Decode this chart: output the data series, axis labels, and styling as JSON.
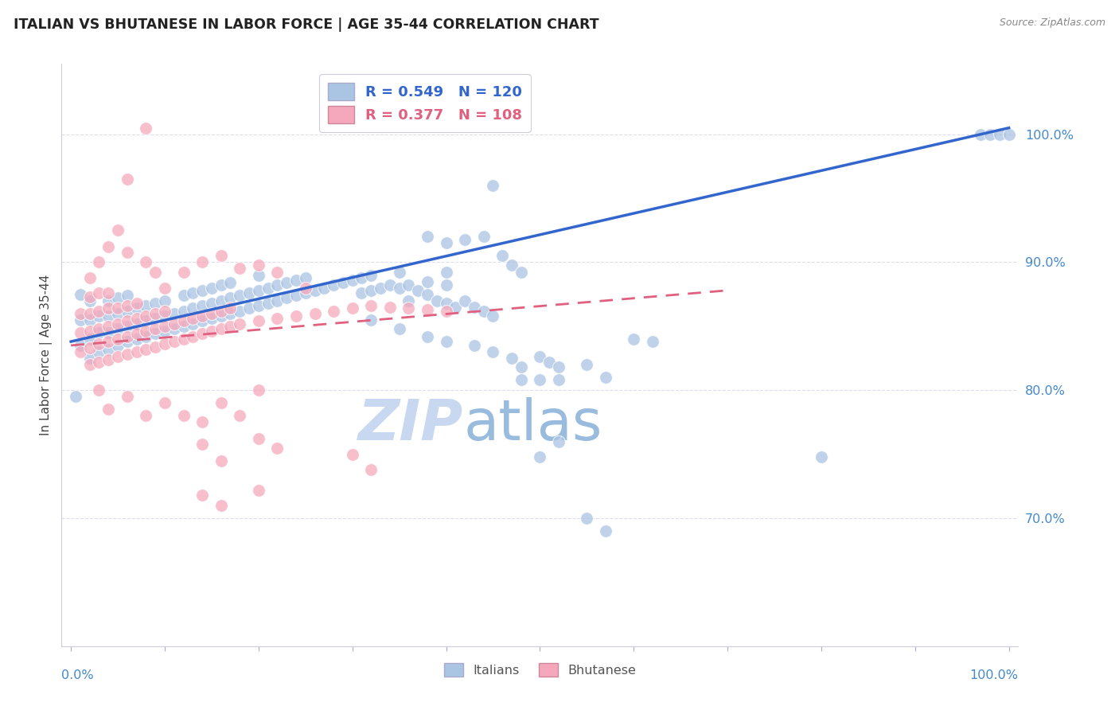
{
  "title": "ITALIAN VS BHUTANESE IN LABOR FORCE | AGE 35-44 CORRELATION CHART",
  "source_text": "Source: ZipAtlas.com",
  "ylabel": "In Labor Force | Age 35-44",
  "ytick_labels": [
    "70.0%",
    "80.0%",
    "90.0%",
    "100.0%"
  ],
  "ytick_values": [
    0.7,
    0.8,
    0.9,
    1.0
  ],
  "xlim": [
    -0.01,
    1.01
  ],
  "ylim": [
    0.6,
    1.055
  ],
  "italian_color": "#aac4e4",
  "bhutanese_color": "#f5a8bb",
  "italian_line_color": "#3366cc",
  "bhutanese_line_color": "#e06080",
  "title_color": "#222222",
  "axis_label_color": "#4488cc",
  "watermark_zip_color": "#c8d8f0",
  "watermark_atlas_color": "#99bbdd",
  "background_color": "#ffffff",
  "grid_color": "#ddddee",
  "italian_trendline": [
    0.0,
    0.838,
    1.0,
    1.005
  ],
  "bhutanese_trendline": [
    0.0,
    0.835,
    0.7,
    0.878
  ],
  "italian_scatter": [
    [
      0.005,
      0.795
    ],
    [
      0.01,
      0.835
    ],
    [
      0.01,
      0.855
    ],
    [
      0.01,
      0.875
    ],
    [
      0.02,
      0.825
    ],
    [
      0.02,
      0.84
    ],
    [
      0.02,
      0.855
    ],
    [
      0.02,
      0.87
    ],
    [
      0.03,
      0.83
    ],
    [
      0.03,
      0.845
    ],
    [
      0.03,
      0.858
    ],
    [
      0.04,
      0.832
    ],
    [
      0.04,
      0.845
    ],
    [
      0.04,
      0.858
    ],
    [
      0.04,
      0.87
    ],
    [
      0.05,
      0.835
    ],
    [
      0.05,
      0.848
    ],
    [
      0.05,
      0.86
    ],
    [
      0.05,
      0.872
    ],
    [
      0.06,
      0.838
    ],
    [
      0.06,
      0.85
    ],
    [
      0.06,
      0.862
    ],
    [
      0.06,
      0.874
    ],
    [
      0.07,
      0.84
    ],
    [
      0.07,
      0.852
    ],
    [
      0.07,
      0.864
    ],
    [
      0.08,
      0.842
    ],
    [
      0.08,
      0.854
    ],
    [
      0.08,
      0.866
    ],
    [
      0.09,
      0.844
    ],
    [
      0.09,
      0.856
    ],
    [
      0.09,
      0.868
    ],
    [
      0.1,
      0.846
    ],
    [
      0.1,
      0.858
    ],
    [
      0.1,
      0.87
    ],
    [
      0.11,
      0.848
    ],
    [
      0.11,
      0.86
    ],
    [
      0.12,
      0.85
    ],
    [
      0.12,
      0.862
    ],
    [
      0.12,
      0.874
    ],
    [
      0.13,
      0.852
    ],
    [
      0.13,
      0.864
    ],
    [
      0.13,
      0.876
    ],
    [
      0.14,
      0.854
    ],
    [
      0.14,
      0.866
    ],
    [
      0.14,
      0.878
    ],
    [
      0.15,
      0.856
    ],
    [
      0.15,
      0.868
    ],
    [
      0.15,
      0.88
    ],
    [
      0.16,
      0.858
    ],
    [
      0.16,
      0.87
    ],
    [
      0.16,
      0.882
    ],
    [
      0.17,
      0.86
    ],
    [
      0.17,
      0.872
    ],
    [
      0.17,
      0.884
    ],
    [
      0.18,
      0.862
    ],
    [
      0.18,
      0.874
    ],
    [
      0.19,
      0.864
    ],
    [
      0.19,
      0.876
    ],
    [
      0.2,
      0.866
    ],
    [
      0.2,
      0.878
    ],
    [
      0.2,
      0.89
    ],
    [
      0.21,
      0.868
    ],
    [
      0.21,
      0.88
    ],
    [
      0.22,
      0.87
    ],
    [
      0.22,
      0.882
    ],
    [
      0.23,
      0.872
    ],
    [
      0.23,
      0.884
    ],
    [
      0.24,
      0.874
    ],
    [
      0.24,
      0.886
    ],
    [
      0.25,
      0.876
    ],
    [
      0.25,
      0.888
    ],
    [
      0.26,
      0.878
    ],
    [
      0.27,
      0.88
    ],
    [
      0.28,
      0.882
    ],
    [
      0.29,
      0.884
    ],
    [
      0.3,
      0.886
    ],
    [
      0.31,
      0.876
    ],
    [
      0.31,
      0.888
    ],
    [
      0.32,
      0.878
    ],
    [
      0.32,
      0.89
    ],
    [
      0.33,
      0.88
    ],
    [
      0.34,
      0.882
    ],
    [
      0.35,
      0.88
    ],
    [
      0.35,
      0.892
    ],
    [
      0.36,
      0.882
    ],
    [
      0.36,
      0.87
    ],
    [
      0.37,
      0.878
    ],
    [
      0.38,
      0.875
    ],
    [
      0.38,
      0.885
    ],
    [
      0.39,
      0.87
    ],
    [
      0.4,
      0.868
    ],
    [
      0.4,
      0.882
    ],
    [
      0.41,
      0.865
    ],
    [
      0.42,
      0.87
    ],
    [
      0.43,
      0.865
    ],
    [
      0.44,
      0.862
    ],
    [
      0.45,
      0.858
    ],
    [
      0.32,
      0.855
    ],
    [
      0.35,
      0.848
    ],
    [
      0.38,
      0.842
    ],
    [
      0.4,
      0.838
    ],
    [
      0.43,
      0.835
    ],
    [
      0.45,
      0.83
    ],
    [
      0.47,
      0.825
    ],
    [
      0.44,
      0.92
    ],
    [
      0.46,
      0.905
    ],
    [
      0.47,
      0.898
    ],
    [
      0.48,
      0.892
    ],
    [
      0.38,
      0.92
    ],
    [
      0.4,
      0.915
    ],
    [
      0.42,
      0.918
    ],
    [
      0.4,
      0.892
    ],
    [
      0.5,
      0.826
    ],
    [
      0.51,
      0.822
    ],
    [
      0.52,
      0.818
    ],
    [
      0.48,
      0.818
    ],
    [
      0.52,
      0.808
    ],
    [
      0.48,
      0.808
    ],
    [
      0.45,
      0.96
    ],
    [
      0.5,
      0.808
    ],
    [
      0.55,
      0.82
    ],
    [
      0.57,
      0.81
    ],
    [
      0.6,
      0.84
    ],
    [
      0.62,
      0.838
    ],
    [
      0.5,
      0.748
    ],
    [
      0.52,
      0.76
    ],
    [
      0.55,
      0.7
    ],
    [
      0.57,
      0.69
    ],
    [
      0.8,
      0.748
    ],
    [
      0.97,
      1.0
    ],
    [
      0.98,
      1.0
    ],
    [
      0.99,
      1.0
    ],
    [
      1.0,
      1.0
    ]
  ],
  "bhutanese_scatter": [
    [
      0.01,
      0.83
    ],
    [
      0.01,
      0.845
    ],
    [
      0.01,
      0.86
    ],
    [
      0.02,
      0.82
    ],
    [
      0.02,
      0.833
    ],
    [
      0.02,
      0.846
    ],
    [
      0.02,
      0.86
    ],
    [
      0.02,
      0.873
    ],
    [
      0.02,
      0.888
    ],
    [
      0.03,
      0.822
    ],
    [
      0.03,
      0.836
    ],
    [
      0.03,
      0.848
    ],
    [
      0.03,
      0.862
    ],
    [
      0.03,
      0.876
    ],
    [
      0.04,
      0.824
    ],
    [
      0.04,
      0.838
    ],
    [
      0.04,
      0.85
    ],
    [
      0.04,
      0.864
    ],
    [
      0.04,
      0.876
    ],
    [
      0.05,
      0.826
    ],
    [
      0.05,
      0.84
    ],
    [
      0.05,
      0.852
    ],
    [
      0.05,
      0.864
    ],
    [
      0.06,
      0.828
    ],
    [
      0.06,
      0.842
    ],
    [
      0.06,
      0.854
    ],
    [
      0.06,
      0.866
    ],
    [
      0.07,
      0.83
    ],
    [
      0.07,
      0.844
    ],
    [
      0.07,
      0.856
    ],
    [
      0.07,
      0.868
    ],
    [
      0.08,
      0.832
    ],
    [
      0.08,
      0.846
    ],
    [
      0.08,
      0.858
    ],
    [
      0.09,
      0.834
    ],
    [
      0.09,
      0.848
    ],
    [
      0.09,
      0.86
    ],
    [
      0.1,
      0.836
    ],
    [
      0.1,
      0.85
    ],
    [
      0.1,
      0.862
    ],
    [
      0.11,
      0.838
    ],
    [
      0.11,
      0.852
    ],
    [
      0.12,
      0.84
    ],
    [
      0.12,
      0.854
    ],
    [
      0.13,
      0.842
    ],
    [
      0.13,
      0.856
    ],
    [
      0.14,
      0.844
    ],
    [
      0.14,
      0.858
    ],
    [
      0.15,
      0.846
    ],
    [
      0.15,
      0.86
    ],
    [
      0.16,
      0.848
    ],
    [
      0.16,
      0.862
    ],
    [
      0.17,
      0.85
    ],
    [
      0.17,
      0.864
    ],
    [
      0.18,
      0.852
    ],
    [
      0.2,
      0.854
    ],
    [
      0.22,
      0.856
    ],
    [
      0.24,
      0.858
    ],
    [
      0.26,
      0.86
    ],
    [
      0.28,
      0.862
    ],
    [
      0.3,
      0.864
    ],
    [
      0.32,
      0.866
    ],
    [
      0.34,
      0.865
    ],
    [
      0.36,
      0.864
    ],
    [
      0.38,
      0.863
    ],
    [
      0.4,
      0.862
    ],
    [
      0.03,
      0.9
    ],
    [
      0.04,
      0.912
    ],
    [
      0.05,
      0.925
    ],
    [
      0.06,
      0.908
    ],
    [
      0.08,
      0.9
    ],
    [
      0.09,
      0.892
    ],
    [
      0.1,
      0.88
    ],
    [
      0.12,
      0.892
    ],
    [
      0.14,
      0.9
    ],
    [
      0.16,
      0.905
    ],
    [
      0.18,
      0.895
    ],
    [
      0.2,
      0.898
    ],
    [
      0.22,
      0.892
    ],
    [
      0.25,
      0.88
    ],
    [
      0.06,
      0.965
    ],
    [
      0.08,
      1.005
    ],
    [
      0.03,
      0.8
    ],
    [
      0.04,
      0.785
    ],
    [
      0.06,
      0.795
    ],
    [
      0.08,
      0.78
    ],
    [
      0.1,
      0.79
    ],
    [
      0.12,
      0.78
    ],
    [
      0.14,
      0.775
    ],
    [
      0.16,
      0.79
    ],
    [
      0.18,
      0.78
    ],
    [
      0.2,
      0.8
    ],
    [
      0.14,
      0.758
    ],
    [
      0.16,
      0.745
    ],
    [
      0.2,
      0.762
    ],
    [
      0.22,
      0.755
    ],
    [
      0.3,
      0.75
    ],
    [
      0.32,
      0.738
    ],
    [
      0.14,
      0.718
    ],
    [
      0.16,
      0.71
    ],
    [
      0.2,
      0.722
    ]
  ]
}
